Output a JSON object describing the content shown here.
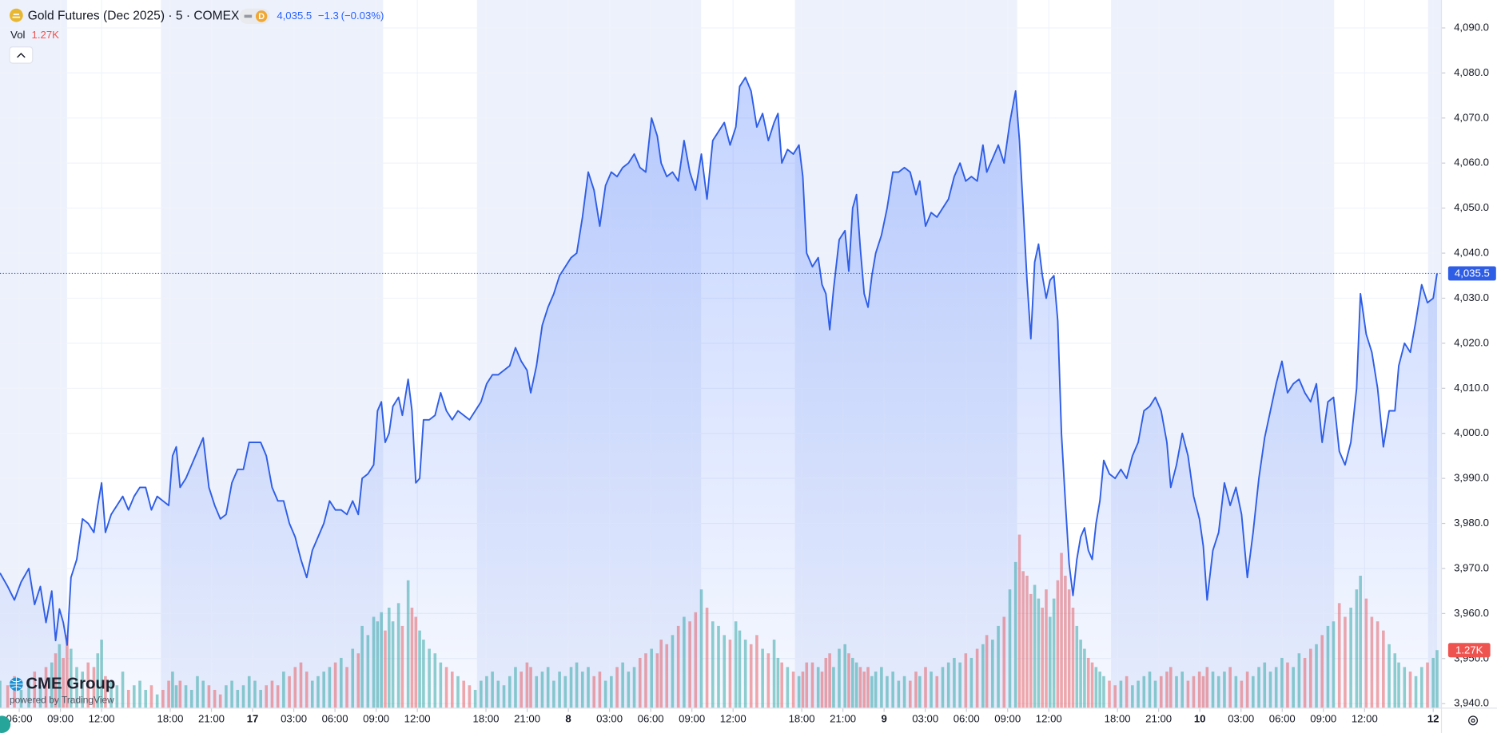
{
  "chart_data": {
    "type": "area",
    "title": "Gold Futures (Dec 2025) · 5 · COMEX",
    "badge": "D",
    "change": "−1.3",
    "change_pct": "(−0.03%)",
    "volume_label": "Vol",
    "volume_last": "1.27K",
    "logo": "CME Group",
    "powered_by": "powered by TradingView",
    "color": "#2f5ee6",
    "grid": true,
    "last_price": {
      "value": 4035.5,
      "label": "4,035.5"
    },
    "xlim": [
      -1.4,
      103.6
    ],
    "ylim": [
      3939.0,
      4096.2
    ],
    "xticks": [
      {
        "value": 0,
        "label": "06:00"
      },
      {
        "value": 3,
        "label": "09:00"
      },
      {
        "value": 6,
        "label": "12:00"
      },
      {
        "value": 11,
        "label": "18:00"
      },
      {
        "value": 14,
        "label": "21:00"
      },
      17,
      {
        "value": 20,
        "label": "03:00"
      },
      {
        "value": 23,
        "label": "06:00"
      },
      {
        "value": 26,
        "label": "09:00"
      },
      {
        "value": 29,
        "label": "12:00"
      },
      {
        "value": 34,
        "label": "18:00"
      },
      {
        "value": 37,
        "label": "21:00"
      },
      {
        "value": 40,
        "label": "8"
      },
      {
        "value": 43,
        "label": "03:00"
      },
      {
        "value": 46,
        "label": "06:00"
      },
      {
        "value": 49,
        "label": "09:00"
      },
      {
        "value": 52,
        "label": "12:00"
      },
      {
        "value": 57,
        "label": "18:00"
      },
      {
        "value": 60,
        "label": "21:00"
      },
      {
        "value": 63,
        "label": "9"
      },
      {
        "value": 66,
        "label": "03:00"
      },
      {
        "value": 69,
        "label": "06:00"
      },
      {
        "value": 72,
        "label": "09:00"
      },
      {
        "value": 75,
        "label": "12:00"
      },
      {
        "value": 80,
        "label": "18:00"
      },
      {
        "value": 83,
        "label": "21:00"
      },
      {
        "value": 86,
        "label": "10"
      },
      {
        "value": 89,
        "label": "03:00"
      },
      {
        "value": 92,
        "label": "06:00"
      },
      {
        "value": 95,
        "label": "09:00"
      },
      {
        "value": 98,
        "label": "12:00"
      },
      {
        "value": 103,
        "label": "12"
      }
    ],
    "yticks": [
      {
        "value": 3940,
        "label": "3,940.0"
      },
      {
        "value": 3950,
        "label": "3,950.0"
      },
      {
        "value": 3960,
        "label": "3,960.0"
      },
      {
        "value": 3970,
        "label": "3,970.0"
      },
      {
        "value": 3980,
        "label": "3,980.0"
      },
      {
        "value": 3990,
        "label": "3,990.0"
      },
      {
        "value": 4000,
        "label": "4,000.0"
      },
      {
        "value": 4010,
        "label": "4,010.0"
      },
      {
        "value": 4020,
        "label": "4,020.0"
      },
      {
        "value": 4030,
        "label": "4,030.0"
      },
      {
        "value": 4040,
        "label": "4,040.0"
      },
      {
        "value": 4050,
        "label": "4,050.0"
      },
      {
        "value": 4060,
        "label": "4,060.0"
      },
      {
        "value": 4070,
        "label": "4,070.0"
      },
      {
        "value": 4080,
        "label": "4,080.0"
      },
      {
        "value": 4090,
        "label": "4,090.0"
      }
    ],
    "x": [
      -1.4,
      -0.84,
      -0.35,
      0.14,
      0.7,
      1.12,
      1.54,
      1.95,
      2.37,
      2.65,
      2.93,
      3.21,
      3.49,
      3.77,
      4.19,
      4.61,
      5.02,
      5.44,
      5.72,
      6.0,
      6.28,
      6.7,
      7.12,
      7.54,
      7.96,
      8.37,
      8.79,
      9.21,
      9.63,
      10.05,
      10.47,
      10.89,
      11.17,
      11.44,
      11.72,
      12.14,
      12.56,
      12.98,
      13.4,
      13.82,
      14.24,
      14.65,
      15.07,
      15.49,
      15.91,
      16.33,
      16.75,
      17.17,
      17.59,
      18.0,
      18.42,
      18.84,
      19.26,
      19.68,
      20.1,
      20.52,
      20.94,
      21.35,
      21.77,
      22.19,
      22.61,
      23.03,
      23.45,
      23.87,
      24.29,
      24.7,
      24.98,
      25.4,
      25.82,
      26.1,
      26.38,
      26.66,
      26.94,
      27.22,
      27.63,
      27.91,
      28.33,
      28.61,
      28.89,
      29.17,
      29.45,
      29.87,
      30.29,
      30.7,
      31.12,
      31.54,
      31.96,
      32.38,
      32.8,
      33.22,
      33.64,
      34.05,
      34.47,
      34.89,
      35.31,
      35.73,
      36.15,
      36.57,
      36.99,
      37.26,
      37.68,
      38.1,
      38.52,
      38.94,
      39.36,
      39.78,
      40.2,
      40.61,
      41.03,
      41.45,
      41.87,
      42.29,
      42.71,
      43.13,
      43.55,
      43.96,
      44.38,
      44.8,
      45.22,
      45.64,
      46.06,
      46.48,
      46.76,
      47.17,
      47.59,
      48.01,
      48.43,
      48.85,
      49.27,
      49.69,
      50.1,
      50.52,
      50.94,
      51.36,
      51.78,
      52.2,
      52.48,
      52.9,
      53.31,
      53.73,
      54.15,
      54.57,
      54.99,
      55.27,
      55.55,
      55.97,
      56.39,
      56.8,
      57.08,
      57.36,
      57.78,
      58.2,
      58.48,
      58.76,
      59.04,
      59.32,
      59.73,
      60.15,
      60.43,
      60.71,
      60.99,
      61.27,
      61.55,
      61.83,
      62.11,
      62.39,
      62.81,
      63.22,
      63.64,
      64.06,
      64.48,
      64.9,
      65.32,
      65.6,
      66.02,
      66.43,
      66.85,
      67.27,
      67.69,
      68.11,
      68.53,
      68.95,
      69.36,
      69.78,
      70.2,
      70.48,
      70.9,
      71.32,
      71.74,
      72.16,
      72.58,
      72.86,
      73.13,
      73.41,
      73.69,
      73.97,
      74.25,
      74.53,
      74.81,
      75.09,
      75.37,
      75.65,
      75.92,
      76.2,
      76.48,
      76.76,
      77.04,
      77.32,
      77.6,
      77.88,
      78.16,
      78.44,
      78.72,
      79.0,
      79.41,
      79.83,
      80.25,
      80.67,
      81.09,
      81.51,
      81.93,
      82.35,
      82.76,
      83.18,
      83.6,
      83.88,
      84.3,
      84.72,
      85.14,
      85.55,
      85.97,
      86.25,
      86.53,
      86.95,
      87.37,
      87.79,
      88.21,
      88.63,
      89.04,
      89.46,
      89.88,
      90.3,
      90.72,
      91.14,
      91.56,
      91.98,
      92.39,
      92.81,
      93.23,
      93.65,
      94.07,
      94.49,
      94.91,
      95.33,
      95.74,
      96.16,
      96.58,
      97.0,
      97.42,
      97.7,
      98.12,
      98.53,
      98.95,
      99.37,
      99.79,
      100.21,
      100.49,
      100.91,
      101.33,
      101.74,
      102.16,
      102.58,
      103.0,
      103.28
    ],
    "values": [
      3969,
      3966,
      3963,
      3967,
      3970,
      3962,
      3966,
      3958,
      3965,
      3954,
      3961,
      3958,
      3953,
      3968,
      3972,
      3981,
      3980,
      3978,
      3984,
      3989,
      3978,
      3982,
      3984,
      3986,
      3983,
      3986,
      3988,
      3988,
      3983,
      3986,
      3985,
      3984,
      3995,
      3997,
      3988,
      3990,
      3993,
      3996,
      3999,
      3988,
      3984,
      3981,
      3982,
      3989,
      3992,
      3992,
      3998,
      3998,
      3998,
      3995,
      3988,
      3985,
      3985,
      3980,
      3977,
      3972,
      3968,
      3974,
      3977,
      3980,
      3985,
      3983,
      3983,
      3982,
      3985,
      3982,
      3990,
      3991,
      3993,
      4005,
      4007,
      3998,
      4000,
      4006,
      4008,
      4004,
      4012,
      4005,
      3989,
      3990,
      4003,
      4003,
      4004,
      4009,
      4005,
      4003,
      4005,
      4004,
      4003,
      4005,
      4007,
      4011,
      4013,
      4013,
      4014,
      4015,
      4019,
      4016,
      4014,
      4009,
      4015,
      4024,
      4028,
      4031,
      4035,
      4037,
      4039,
      4040,
      4048,
      4058,
      4054,
      4046,
      4055,
      4058,
      4057,
      4059,
      4060,
      4062,
      4059,
      4058,
      4070,
      4066,
      4060,
      4057,
      4058,
      4056,
      4065,
      4058,
      4054,
      4062,
      4052,
      4065,
      4067,
      4069,
      4064,
      4068,
      4077,
      4079,
      4076,
      4068,
      4071,
      4065,
      4069,
      4071,
      4060,
      4063,
      4062,
      4064,
      4057,
      4040,
      4037,
      4039,
      4033,
      4031,
      4023,
      4032,
      4043,
      4045,
      4036,
      4050,
      4053,
      4041,
      4031,
      4028,
      4035,
      4040,
      4044,
      4050,
      4058,
      4058,
      4059,
      4058,
      4053,
      4056,
      4046,
      4049,
      4048,
      4050,
      4052,
      4057,
      4060,
      4056,
      4057,
      4056,
      4064,
      4058,
      4061,
      4064,
      4060,
      4069,
      4076,
      4065,
      4050,
      4034,
      4021,
      4038,
      4042,
      4035,
      4030,
      4034,
      4035,
      4025,
      4000,
      3985,
      3971,
      3964,
      3972,
      3977,
      3979,
      3974,
      3972,
      3980,
      3985,
      3994,
      3991,
      3990,
      3992,
      3990,
      3995,
      3998,
      4005,
      4006,
      4008,
      4005,
      3998,
      3988,
      3993,
      4000,
      3995,
      3986,
      3981,
      3975,
      3963,
      3974,
      3978,
      3989,
      3984,
      3988,
      3982,
      3968,
      3978,
      3990,
      3999,
      4005,
      4011,
      4016,
      4009,
      4011,
      4012,
      4009,
      4007,
      4011,
      3998,
      4007,
      4008,
      3996,
      3993,
      3998,
      4010,
      4031,
      4022,
      4018,
      4010,
      3997,
      4005,
      4005,
      4015,
      4020,
      4018,
      4025,
      4033,
      4029,
      4030,
      4035.5
    ],
    "volume": {
      "values": [
        0.6,
        0.5,
        0.7,
        0.4,
        0.6,
        0.8,
        0.5,
        0.9,
        1.0,
        1.2,
        1.4,
        1.1,
        1.6,
        1.3,
        0.9,
        0.8,
        1.0,
        0.9,
        1.2,
        1.5,
        0.7,
        0.6,
        0.5,
        0.8,
        0.4,
        0.5,
        0.6,
        0.4,
        0.5,
        0.3,
        0.4,
        0.6,
        0.8,
        0.5,
        0.6,
        0.5,
        0.4,
        0.7,
        0.6,
        0.5,
        0.4,
        0.3,
        0.5,
        0.6,
        0.4,
        0.5,
        0.7,
        0.6,
        0.4,
        0.5,
        0.6,
        0.5,
        0.8,
        0.7,
        0.9,
        1.0,
        0.8,
        0.6,
        0.7,
        0.8,
        0.9,
        1.0,
        1.1,
        0.9,
        1.3,
        1.2,
        1.8,
        1.6,
        2.0,
        1.9,
        2.1,
        1.7,
        2.2,
        1.9,
        2.3,
        1.8,
        2.8,
        2.2,
        2.0,
        1.7,
        1.5,
        1.3,
        1.2,
        1.0,
        0.9,
        0.8,
        0.7,
        0.6,
        0.5,
        0.4,
        0.6,
        0.7,
        0.8,
        0.6,
        0.5,
        0.7,
        0.9,
        0.8,
        1.0,
        0.9,
        0.7,
        0.8,
        0.9,
        0.6,
        0.8,
        0.7,
        0.9,
        1.0,
        0.8,
        0.9,
        0.7,
        0.8,
        0.6,
        0.7,
        0.9,
        1.0,
        0.8,
        0.9,
        1.1,
        1.2,
        1.3,
        1.2,
        1.5,
        1.4,
        1.6,
        1.8,
        2.0,
        1.9,
        2.1,
        2.6,
        2.2,
        1.9,
        1.8,
        1.6,
        1.5,
        1.9,
        1.7,
        1.5,
        1.4,
        1.6,
        1.3,
        1.2,
        1.5,
        1.1,
        1.0,
        0.9,
        0.8,
        0.7,
        0.8,
        1.0,
        1.0,
        0.9,
        0.8,
        1.1,
        1.2,
        0.9,
        1.3,
        1.4,
        1.2,
        1.1,
        1.0,
        0.9,
        0.8,
        0.9,
        0.7,
        0.8,
        0.9,
        0.7,
        0.8,
        0.6,
        0.7,
        0.6,
        0.8,
        0.7,
        0.9,
        0.8,
        0.7,
        0.9,
        1.0,
        1.1,
        1.0,
        1.2,
        1.1,
        1.3,
        1.4,
        1.6,
        1.5,
        1.8,
        2.0,
        2.6,
        3.2,
        3.8,
        3.0,
        2.9,
        2.5,
        2.7,
        2.4,
        2.2,
        2.6,
        2.0,
        2.4,
        2.8,
        3.4,
        2.9,
        2.6,
        2.2,
        1.8,
        1.5,
        1.3,
        1.1,
        1.0,
        0.9,
        0.8,
        0.7,
        0.6,
        0.5,
        0.6,
        0.7,
        0.5,
        0.6,
        0.7,
        0.8,
        0.6,
        0.7,
        0.8,
        0.9,
        0.7,
        0.8,
        0.6,
        0.7,
        0.8,
        0.7,
        0.9,
        0.8,
        0.7,
        0.8,
        0.9,
        0.7,
        0.6,
        0.8,
        0.7,
        0.9,
        1.0,
        0.8,
        0.9,
        1.1,
        1.0,
        0.9,
        1.2,
        1.1,
        1.3,
        1.4,
        1.6,
        1.8,
        1.9,
        2.3,
        2.0,
        2.2,
        2.6,
        2.9,
        2.4,
        2.0,
        1.9,
        1.7,
        1.4,
        1.2,
        1.0,
        0.9,
        0.8,
        0.7,
        0.9,
        1.0,
        1.1,
        1.27
      ]
    }
  }
}
